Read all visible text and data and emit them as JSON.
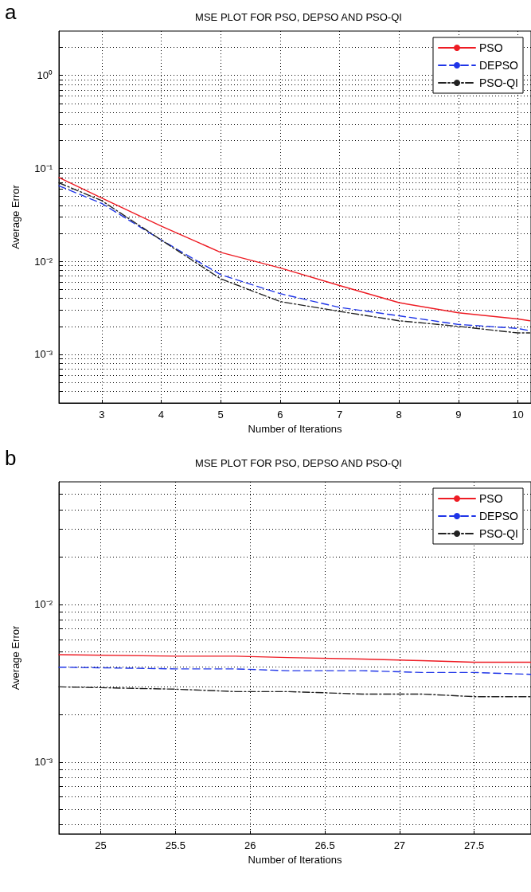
{
  "chart_data": [
    {
      "type": "line",
      "title": "MSE PLOT FOR PSO, DEPSO AND PSO-QI",
      "xlabel": "Number of Iterations",
      "ylabel": "Average Error",
      "annotations": [
        "a"
      ],
      "x": [
        2.28,
        3,
        4,
        5,
        6,
        7,
        8,
        9,
        10,
        10.2
      ],
      "series": [
        {
          "name": "PSO",
          "color": "#ee1c24",
          "line_style": "solid",
          "values": [
            0.08,
            0.048,
            0.024,
            0.0125,
            0.0085,
            0.0055,
            0.0036,
            0.0028,
            0.0024,
            0.0023
          ]
        },
        {
          "name": "DEPSO",
          "color": "#1f35e8",
          "line_style": "dashed",
          "values": [
            0.065,
            0.042,
            0.017,
            0.0072,
            0.0045,
            0.0032,
            0.0026,
            0.0021,
            0.0019,
            0.0018
          ]
        },
        {
          "name": "PSO-QI",
          "color": "#222222",
          "line_style": "dashdot",
          "values": [
            0.07,
            0.045,
            0.017,
            0.0065,
            0.0037,
            0.0029,
            0.0023,
            0.002,
            0.0017,
            0.0017
          ]
        }
      ],
      "xlim": [
        2.28,
        10.22
      ],
      "xticks": [
        3,
        4,
        5,
        6,
        7,
        8,
        9,
        10
      ],
      "ylim": [
        0.0003,
        3
      ],
      "log": "y",
      "yticks": [
        {
          "value": 0.0004,
          "label": null
        },
        {
          "value": 0.0005,
          "label": null
        },
        {
          "value": 0.0006,
          "label": null
        },
        {
          "value": 0.0007,
          "label": null
        },
        {
          "value": 0.0008,
          "label": null
        },
        {
          "value": 0.0009,
          "label": null
        },
        {
          "value": 0.001,
          "label": "10⁻³"
        },
        {
          "value": 0.002,
          "label": null
        },
        {
          "value": 0.003,
          "label": null
        },
        {
          "value": 0.004,
          "label": null
        },
        {
          "value": 0.005,
          "label": null
        },
        {
          "value": 0.006,
          "label": null
        },
        {
          "value": 0.007,
          "label": null
        },
        {
          "value": 0.008,
          "label": null
        },
        {
          "value": 0.009,
          "label": null
        },
        {
          "value": 0.01,
          "label": "10⁻²"
        },
        {
          "value": 0.02,
          "label": null
        },
        {
          "value": 0.03,
          "label": null
        },
        {
          "value": 0.04,
          "label": null
        },
        {
          "value": 0.05,
          "label": null
        },
        {
          "value": 0.06,
          "label": null
        },
        {
          "value": 0.07,
          "label": null
        },
        {
          "value": 0.08,
          "label": null
        },
        {
          "value": 0.09,
          "label": null
        },
        {
          "value": 0.1,
          "label": "10⁻¹"
        },
        {
          "value": 0.2,
          "label": null
        },
        {
          "value": 0.3,
          "label": null
        },
        {
          "value": 0.4,
          "label": null
        },
        {
          "value": 0.5,
          "label": null
        },
        {
          "value": 0.6,
          "label": null
        },
        {
          "value": 0.7,
          "label": null
        },
        {
          "value": 0.8,
          "label": null
        },
        {
          "value": 0.9,
          "label": null
        },
        {
          "value": 1,
          "label": "10⁰"
        },
        {
          "value": 2,
          "label": null
        }
      ],
      "grid": true,
      "legend": "top right",
      "marker": "none"
    },
    {
      "type": "line",
      "title": "MSE PLOT FOR PSO, DEPSO AND PSO-QI",
      "xlabel": "Number of Iterations",
      "ylabel": "Average Error",
      "annotations": [
        "b"
      ],
      "x": [
        24.72,
        25.5,
        25.9,
        26.25,
        26.75,
        27.15,
        27.5,
        27.88
      ],
      "series": [
        {
          "name": "PSO",
          "color": "#ee1c24",
          "line_style": "solid",
          "values": [
            0.0048,
            0.0047,
            0.0047,
            0.0046,
            0.0045,
            0.0044,
            0.0043,
            0.0043
          ]
        },
        {
          "name": "DEPSO",
          "color": "#1f35e8",
          "line_style": "dashed",
          "values": [
            0.004,
            0.0039,
            0.0039,
            0.0038,
            0.0038,
            0.0037,
            0.0037,
            0.0036
          ]
        },
        {
          "name": "PSO-QI",
          "color": "#222222",
          "line_style": "dashdot",
          "values": [
            0.003,
            0.0029,
            0.0028,
            0.0028,
            0.0027,
            0.0027,
            0.0026,
            0.0026
          ]
        }
      ],
      "xlim": [
        24.72,
        27.88
      ],
      "xticks": [
        25,
        25.5,
        26,
        26.5,
        27,
        27.5
      ],
      "ylim": [
        0.00035,
        0.06
      ],
      "log": "y",
      "yticks": [
        {
          "value": 0.0004,
          "label": null
        },
        {
          "value": 0.0005,
          "label": null
        },
        {
          "value": 0.0006,
          "label": null
        },
        {
          "value": 0.0007,
          "label": null
        },
        {
          "value": 0.0008,
          "label": null
        },
        {
          "value": 0.0009,
          "label": null
        },
        {
          "value": 0.001,
          "label": "10⁻³"
        },
        {
          "value": 0.002,
          "label": null
        },
        {
          "value": 0.003,
          "label": null
        },
        {
          "value": 0.004,
          "label": null
        },
        {
          "value": 0.005,
          "label": null
        },
        {
          "value": 0.006,
          "label": null
        },
        {
          "value": 0.007,
          "label": null
        },
        {
          "value": 0.008,
          "label": null
        },
        {
          "value": 0.009,
          "label": null
        },
        {
          "value": 0.01,
          "label": "10⁻²"
        },
        {
          "value": 0.02,
          "label": null
        },
        {
          "value": 0.03,
          "label": null
        },
        {
          "value": 0.04,
          "label": null
        },
        {
          "value": 0.05,
          "label": null
        }
      ],
      "grid": true,
      "legend": "top right",
      "marker": "none"
    }
  ]
}
